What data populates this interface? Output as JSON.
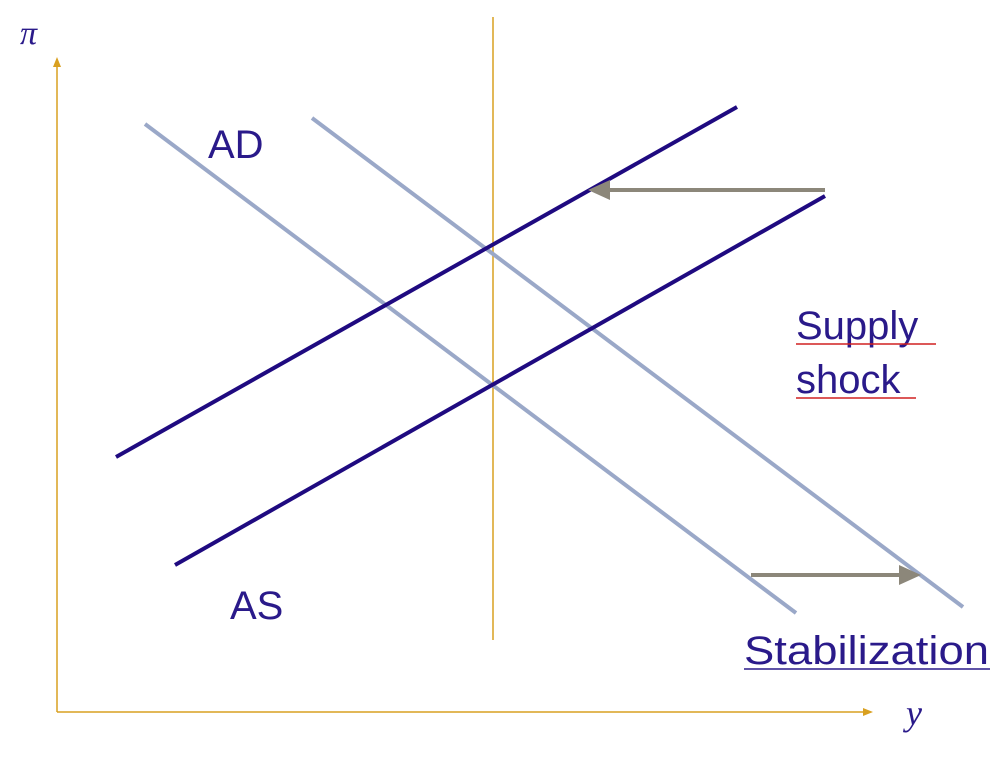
{
  "axes": {
    "y_label": "π",
    "x_label": "y",
    "color": "#d9a020"
  },
  "labels": {
    "ad": "AD",
    "as": "AS",
    "supply_shock_line1": "Supply",
    "supply_shock_line2": "shock",
    "stabilization": "Stabilization"
  },
  "colors": {
    "as_curve": "#1f0a80",
    "ad_curve": "#9aa8c8",
    "arrow": "#8c877a",
    "potential_output_line": "#d9a020",
    "text": "#2a1a8a",
    "underline_red": "#d02020",
    "underline_dark": "#2a1a8a"
  },
  "curves": [
    {
      "id": "ad-original",
      "kind": "AD"
    },
    {
      "id": "ad-shifted",
      "kind": "AD"
    },
    {
      "id": "as-shifted",
      "kind": "AS"
    },
    {
      "id": "as-original",
      "kind": "AS"
    }
  ],
  "arrows": [
    {
      "id": "supply-shock-arrow",
      "direction": "left"
    },
    {
      "id": "stabilization-arrow",
      "direction": "right"
    }
  ]
}
